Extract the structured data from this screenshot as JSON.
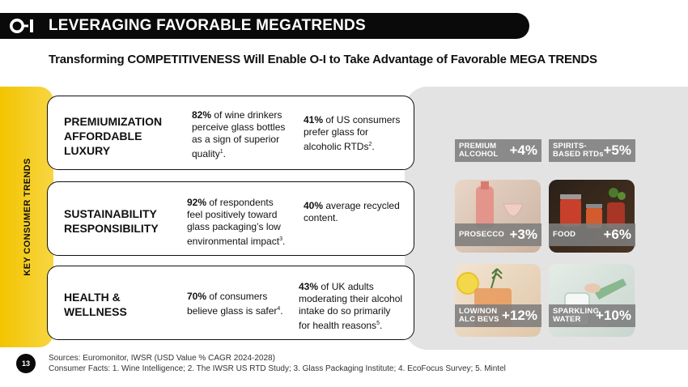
{
  "header": {
    "title": "LEVERAGING FAVORABLE MEGATRENDS"
  },
  "subtitle": "Transforming COMPETITIVENESS Will Enable O-I to Take Advantage of Favorable MEGA TRENDS",
  "side_label": "KEY CONSUMER TRENDS",
  "trends": [
    {
      "title_lines": [
        "PREMIUMIZATION",
        "AFFORDABLE",
        "LUXURY"
      ],
      "fact1": {
        "highlight": "82%",
        "text": " of wine drinkers perceive glass bottles as a sign of superior quality",
        "ref": "1",
        "end": "."
      },
      "fact2": {
        "highlight": "41%",
        "text": " of US consumers prefer glass for alcoholic RTDs",
        "ref": "2",
        "end": "."
      }
    },
    {
      "title_lines": [
        "SUSTAINABILITY",
        "RESPONSIBILITY"
      ],
      "fact1": {
        "highlight": "92%",
        "text": " of respondents feel positively toward glass packaging’s low environmental impact",
        "ref": "3",
        "end": "."
      },
      "fact2": {
        "highlight": "40%",
        "text": " average recycled content.",
        "ref": "",
        "end": ""
      }
    },
    {
      "title_lines": [
        "HEALTH &",
        "WELLNESS"
      ],
      "fact1": {
        "highlight": "70%",
        "text": " of consumers believe glass is safer",
        "ref": "4",
        "end": "."
      },
      "fact2": {
        "highlight": "43%",
        "text": " of UK adults moderating their alcohol intake do so primarily for health reasons",
        "ref": "5",
        "end": "."
      }
    }
  ],
  "categories": [
    {
      "label_lines": [
        "PREMIUM",
        "ALCOHOL"
      ],
      "value": "+4%",
      "has_photo": false
    },
    {
      "label_lines": [
        "SPIRITS-",
        "BASED RTDs"
      ],
      "value": "+5%",
      "has_photo": false
    },
    {
      "label_lines": [
        "PROSECCO"
      ],
      "value": "+3%",
      "has_photo": true,
      "photo_icon": "wine-glass-photo-icon"
    },
    {
      "label_lines": [
        "FOOD"
      ],
      "value": "+6%",
      "has_photo": true,
      "photo_icon": "food-jars-photo-icon"
    },
    {
      "label_lines": [
        "LOW/NON",
        "ALC BEVS"
      ],
      "value": "+12%",
      "has_photo": true,
      "photo_icon": "cocktail-photo-icon"
    },
    {
      "label_lines": [
        "SPARKLING",
        "WATER"
      ],
      "value": "+10%",
      "has_photo": true,
      "photo_icon": "water-bottle-photo-icon"
    }
  ],
  "footer": {
    "page_number": "13",
    "sources_line1": "Sources: Euromonitor, IWSR (USD  Value % CAGR 2024-2028)",
    "sources_line2": "Consumer Facts: 1. Wine Intelligence; 2. The IWSR US RTD Study; 3. Glass Packaging Institute; 4. EcoFocus Survey;  5. Mintel"
  },
  "colors": {
    "accent_yellow": "#f3c400",
    "dark": "#0a0a0a",
    "panel_gray": "#e3e3e3",
    "tag_gray": "#7d7d7d"
  }
}
